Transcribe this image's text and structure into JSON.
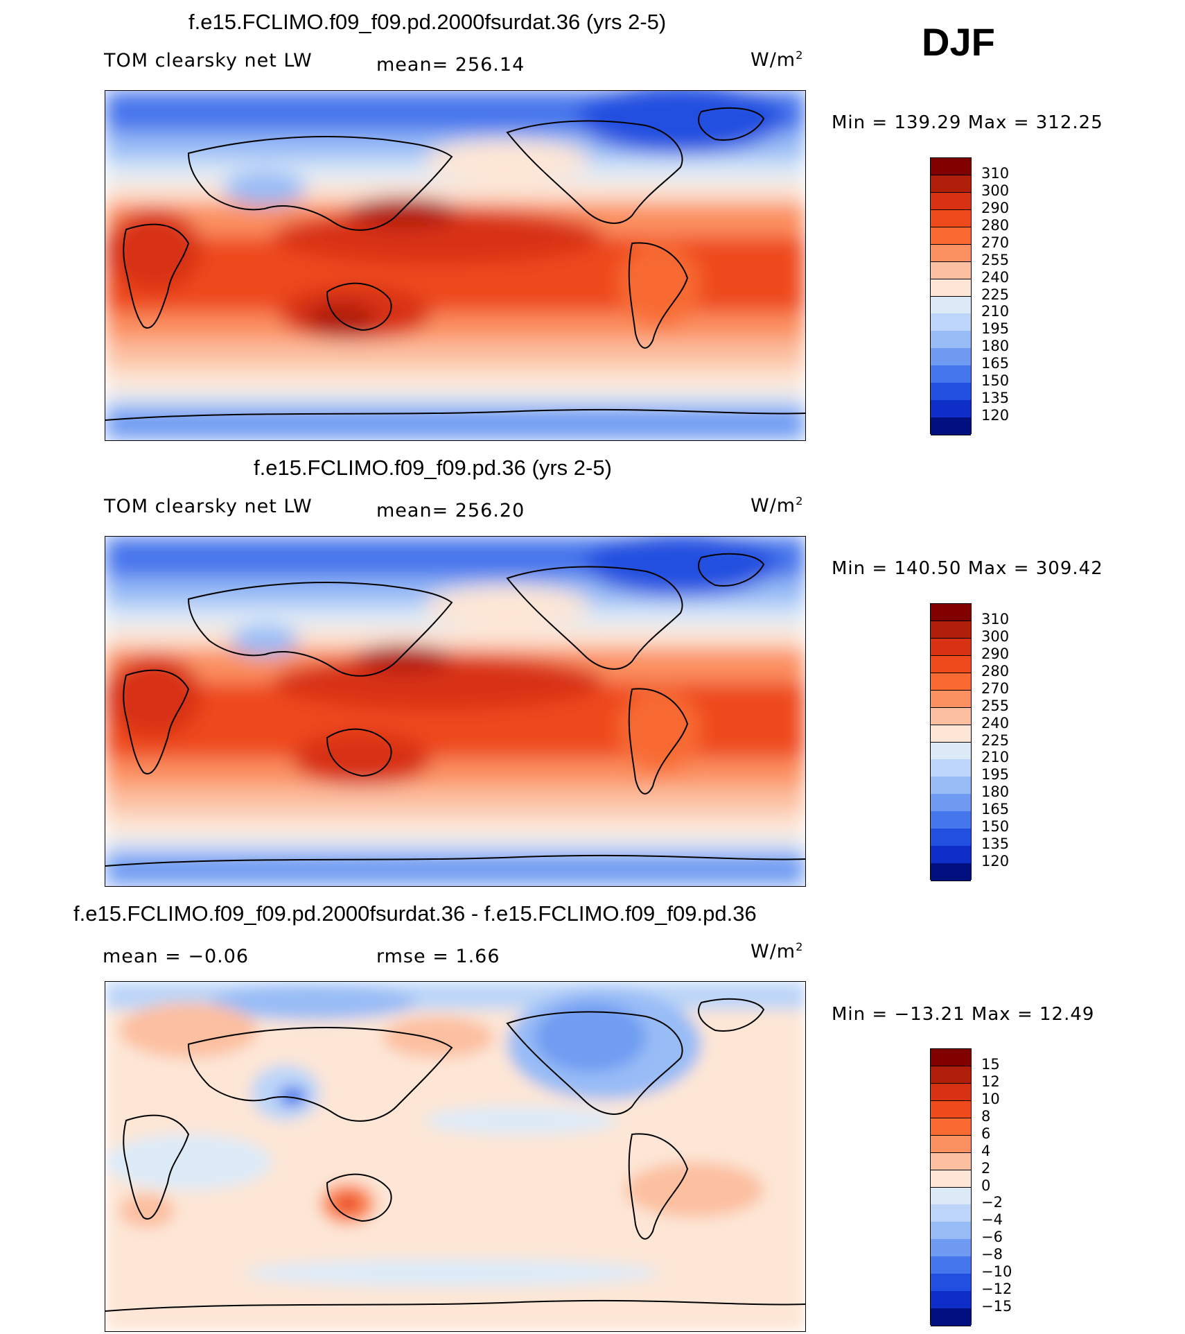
{
  "season": "DJF",
  "panels": [
    {
      "title": "f.e15.FCLIMO.f09_f09.pd.2000fsurdat.36 (yrs 2-5)",
      "variable": "TOM clearsky net LW",
      "stat": "mean=  256.14",
      "units": "W/m",
      "units_sup": "2",
      "minmax": "Min  =  139.29  Max  =  312.25",
      "colorbar": {
        "levels": [
          "310",
          "300",
          "290",
          "280",
          "270",
          "255",
          "240",
          "225",
          "210",
          "195",
          "180",
          "165",
          "150",
          "135",
          "120"
        ],
        "colors": [
          "#800000",
          "#b01e0a",
          "#d83214",
          "#ee4a1c",
          "#f86a32",
          "#fb9060",
          "#fcbfa0",
          "#fde6d6",
          "#dceaf8",
          "#bcd5f8",
          "#98bcf6",
          "#6f9cf2",
          "#4676ec",
          "#2150e0",
          "#0d2fc7",
          "#00107f"
        ]
      }
    },
    {
      "title": "f.e15.FCLIMO.f09_f09.pd.36 (yrs 2-5)",
      "variable": "TOM clearsky net LW",
      "stat": "mean=  256.20",
      "units": "W/m",
      "units_sup": "2",
      "minmax": "Min  =  140.50  Max  =  309.42",
      "colorbar": {
        "levels": [
          "310",
          "300",
          "290",
          "280",
          "270",
          "255",
          "240",
          "225",
          "210",
          "195",
          "180",
          "165",
          "150",
          "135",
          "120"
        ],
        "colors": [
          "#800000",
          "#b01e0a",
          "#d83214",
          "#ee4a1c",
          "#f86a32",
          "#fb9060",
          "#fcbfa0",
          "#fde6d6",
          "#dceaf8",
          "#bcd5f8",
          "#98bcf6",
          "#6f9cf2",
          "#4676ec",
          "#2150e0",
          "#0d2fc7",
          "#00107f"
        ]
      }
    },
    {
      "title": "f.e15.FCLIMO.f09_f09.pd.2000fsurdat.36 - f.e15.FCLIMO.f09_f09.pd.36",
      "variable": "mean  =    −0.06",
      "stat": "rmse  =     1.66",
      "units": "W/m",
      "units_sup": "2",
      "minmax": "Min  =  −13.21  Max  =    12.49",
      "colorbar": {
        "levels": [
          "15",
          "12",
          "10",
          "8",
          "6",
          "4",
          "2",
          "0",
          "−2",
          "−4",
          "−6",
          "−8",
          "−10",
          "−12",
          "−15"
        ],
        "colors": [
          "#800000",
          "#b01e0a",
          "#d83214",
          "#ee4a1c",
          "#f86a32",
          "#fb9060",
          "#fcbfa0",
          "#fde6d6",
          "#dceaf8",
          "#bcd5f8",
          "#98bcf6",
          "#6f9cf2",
          "#4676ec",
          "#2150e0",
          "#0d2fc7",
          "#00107f"
        ]
      }
    }
  ]
}
